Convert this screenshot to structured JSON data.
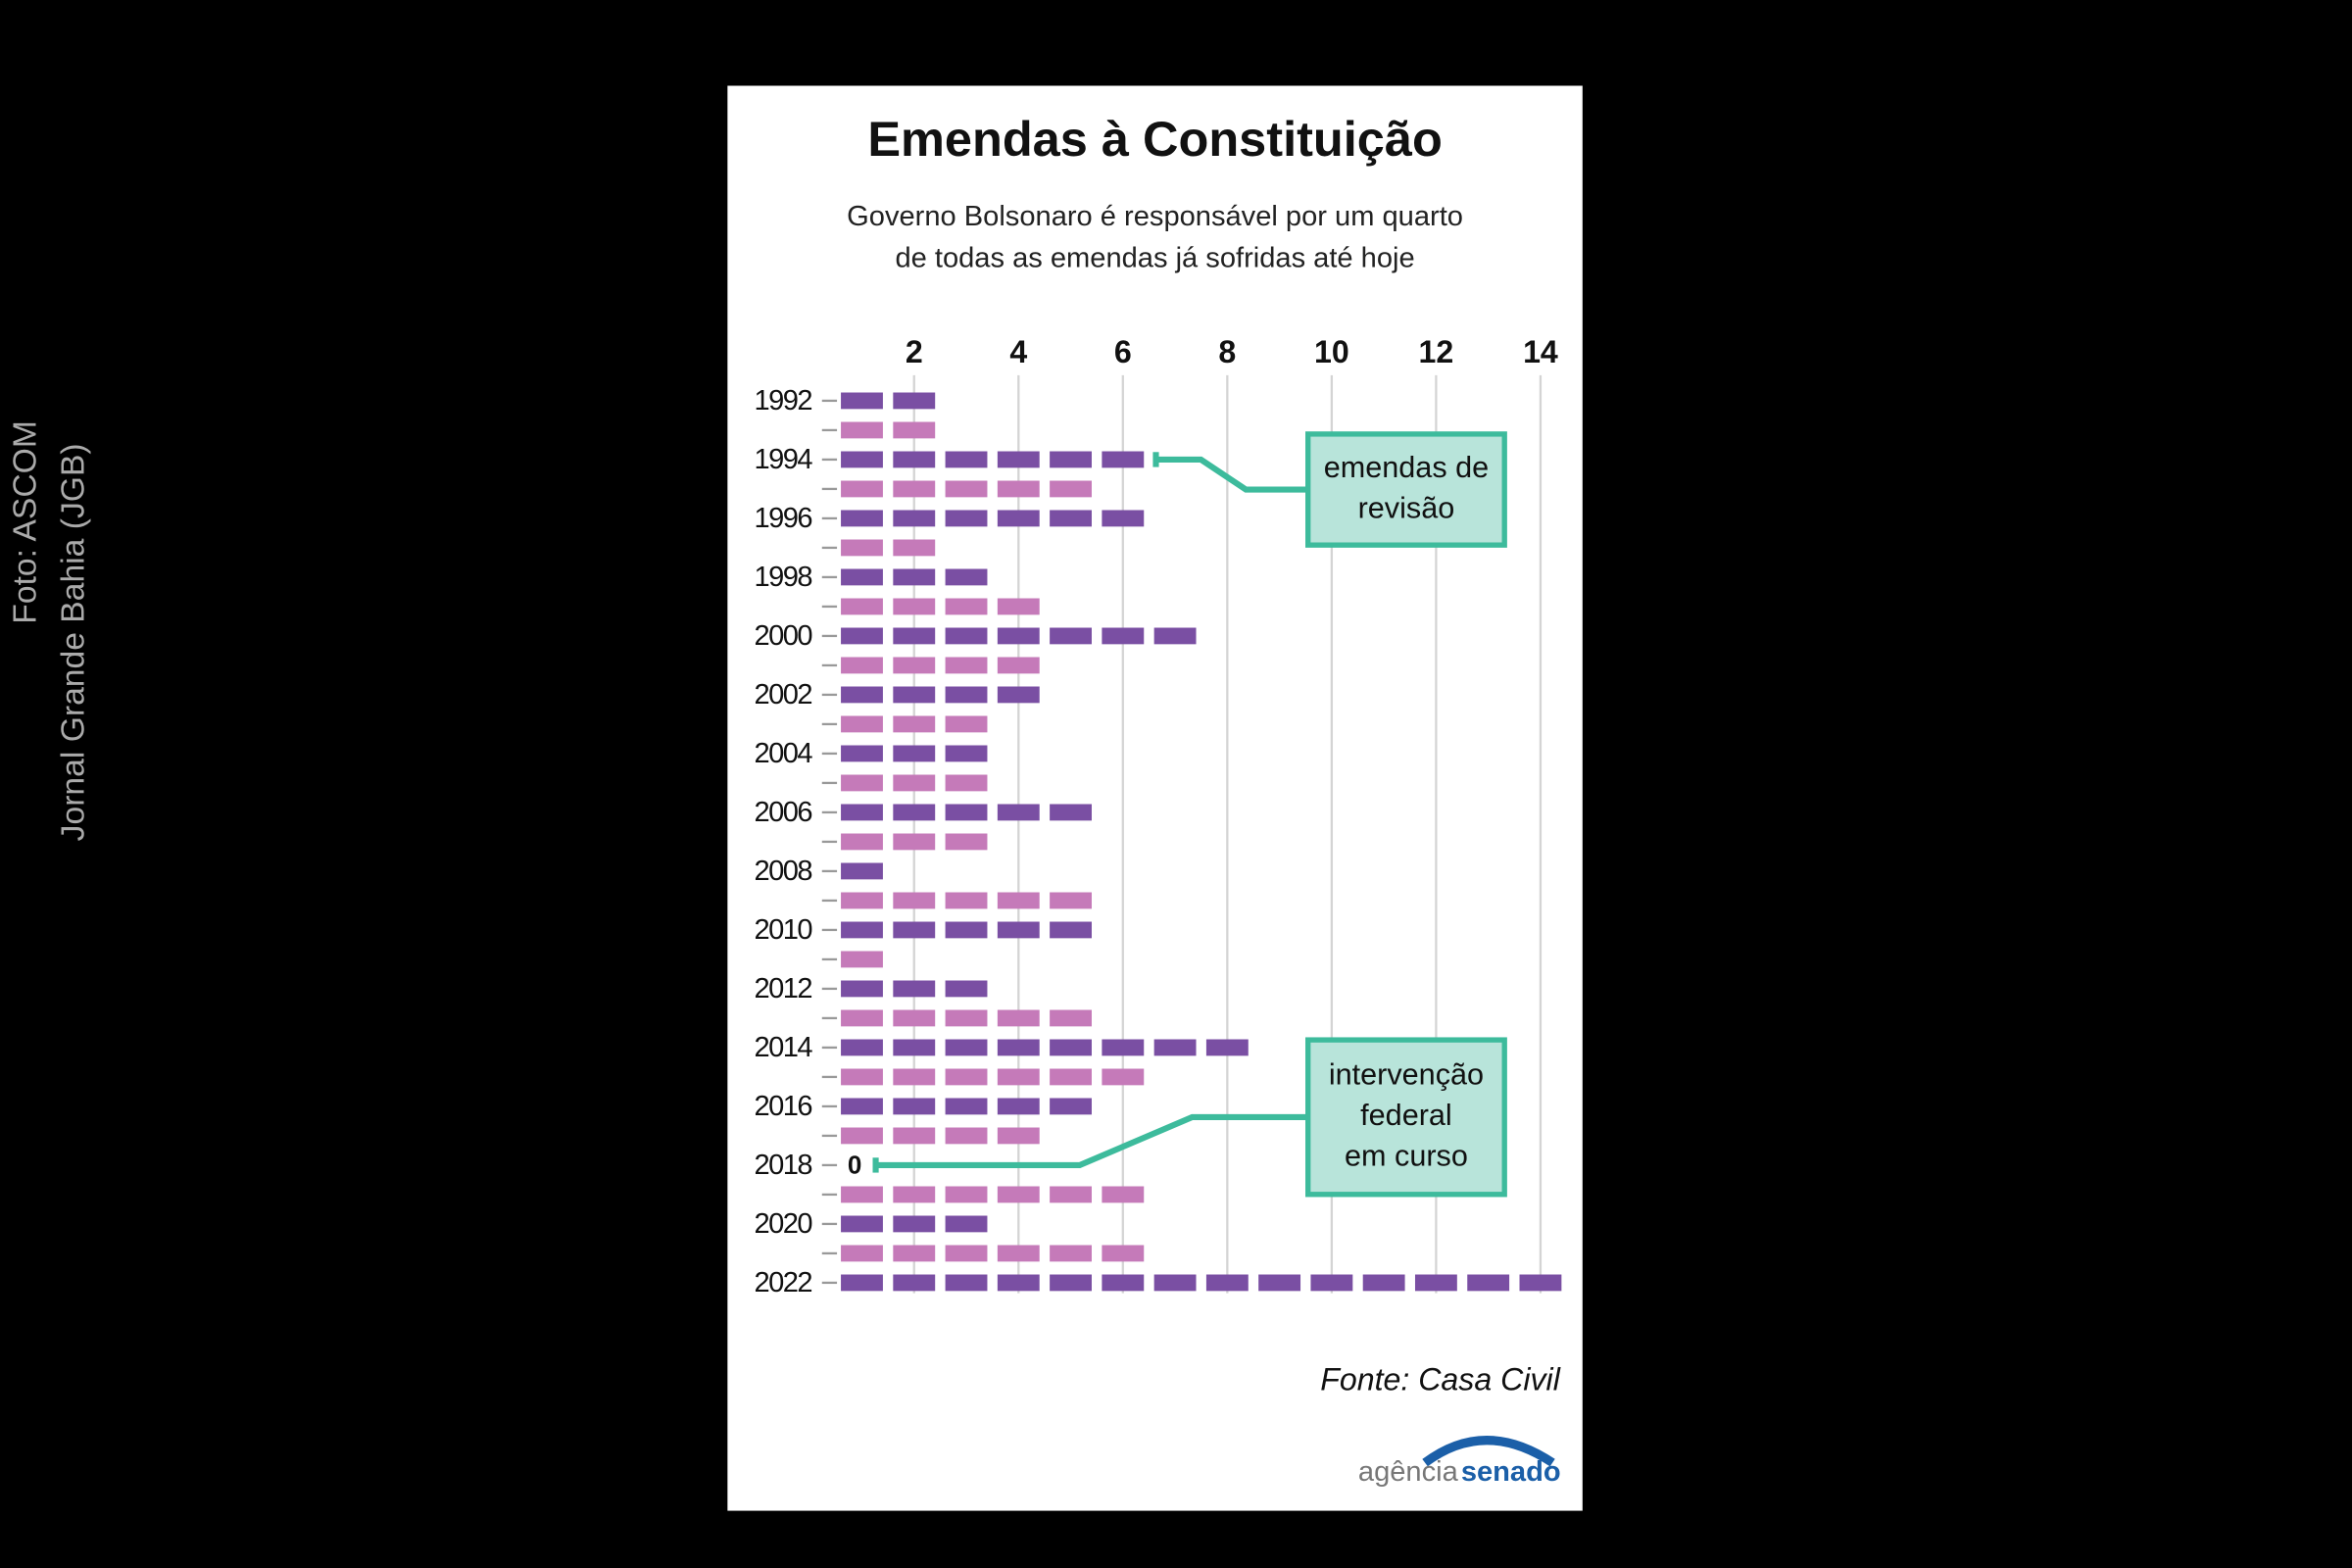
{
  "chart_data": {
    "type": "pictogram_bar",
    "title": "Emendas à Constituição",
    "subtitle": [
      "Governo Bolsonaro é responsável por um quarto",
      "de todas as emendas já sofridas até hoje"
    ],
    "categories": [
      "1992",
      null,
      "1994",
      null,
      "1996",
      null,
      "1998",
      null,
      "2000",
      null,
      "2002",
      null,
      "2004",
      null,
      "2006",
      null,
      "2008",
      null,
      "2010",
      null,
      "2012",
      null,
      "2014",
      null,
      "2016",
      null,
      "2018",
      null,
      "2020",
      null,
      "2022"
    ],
    "values": [
      2,
      2,
      6,
      5,
      6,
      2,
      3,
      4,
      7,
      4,
      4,
      3,
      3,
      3,
      5,
      3,
      1,
      5,
      5,
      1,
      3,
      5,
      8,
      6,
      5,
      4,
      0,
      6,
      3,
      6,
      14
    ],
    "colors": [
      "#7a4fa3",
      "#c57ab9"
    ],
    "xlim": [
      0,
      14
    ],
    "xticks": [
      2,
      4,
      6,
      8,
      10,
      12,
      14
    ],
    "grid": true,
    "annotations": [
      {
        "lines": [
          "emendas de",
          "revisão"
        ],
        "category": "1994"
      },
      {
        "lines": [
          "intervenção",
          "federal",
          "em curso"
        ],
        "category": "2018"
      }
    ],
    "source": "Fonte: Casa Civil",
    "logo": [
      "agência",
      "senado"
    ],
    "credits": [
      "Foto: ASCOM",
      "Jornal Grande Bahia (JGB)"
    ]
  }
}
